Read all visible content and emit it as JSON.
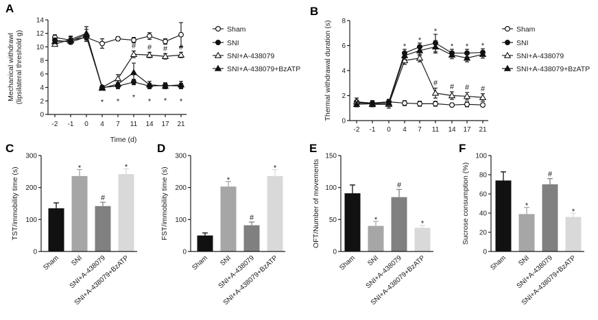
{
  "chart_data": [
    {
      "panel": "A",
      "type": "line",
      "xlabel": "Time (d)",
      "ylabel": "Mechanical withdrawl",
      "ylabel_sub": "(lipsilateral threshold g)",
      "x": [
        -2,
        -1,
        0,
        4,
        7,
        11,
        14,
        17,
        21
      ],
      "ylim": [
        0,
        14
      ],
      "yticks": [
        0,
        2,
        4,
        6,
        8,
        10,
        12,
        14
      ],
      "legend": "right",
      "series": [
        {
          "name": "Sham",
          "marker": "open-circle",
          "values": [
            11.4,
            11.0,
            11.4,
            10.5,
            11.2,
            11.0,
            11.6,
            10.8,
            11.8
          ],
          "errors": [
            0.4,
            0.5,
            0.6,
            0.7,
            0.3,
            0.4,
            0.5,
            0.4,
            1.8
          ]
        },
        {
          "name": "SNI",
          "marker": "filled-circle",
          "values": [
            11.0,
            10.7,
            11.5,
            4.0,
            4.2,
            4.8,
            4.2,
            4.3,
            4.2
          ],
          "errors": [
            0.3,
            0.3,
            0.5,
            0.3,
            0.4,
            0.4,
            0.4,
            0.4,
            0.4
          ]
        },
        {
          "name": "SNI+A-438079",
          "marker": "open-triangle",
          "values": [
            10.4,
            11.1,
            12.0,
            4.0,
            5.3,
            8.9,
            8.8,
            8.6,
            8.8
          ],
          "errors": [
            0.3,
            0.5,
            1.0,
            0.3,
            0.6,
            0.5,
            0.4,
            0.4,
            0.4
          ]
        },
        {
          "name": "SNI+A-438079+BzATP",
          "marker": "filled-triangle",
          "values": [
            10.8,
            10.9,
            11.8,
            3.9,
            4.5,
            6.2,
            4.4,
            4.2,
            4.4
          ],
          "errors": [
            0.3,
            0.4,
            0.8,
            0.3,
            0.5,
            1.4,
            0.5,
            0.4,
            0.5
          ]
        }
      ],
      "significance": [
        {
          "symbol": "*",
          "x": [
            4,
            7,
            11,
            14,
            17,
            21
          ],
          "ref_series": "SNI",
          "position": "below"
        },
        {
          "symbol": "#",
          "x": [
            11,
            14,
            17,
            21
          ],
          "ref_series": "SNI+A-438079",
          "position": "above"
        }
      ]
    },
    {
      "panel": "B",
      "type": "line",
      "ylabel": "Thermal withdrawal duration (s)",
      "x": [
        -2,
        -1,
        0,
        4,
        7,
        11,
        14,
        17,
        21
      ],
      "ylim": [
        0,
        8
      ],
      "yticks": [
        0,
        2,
        4,
        6,
        8
      ],
      "legend": "right",
      "series": [
        {
          "name": "Sham",
          "marker": "open-circle",
          "values": [
            1.5,
            1.4,
            1.5,
            1.4,
            1.35,
            1.35,
            1.25,
            1.3,
            1.25
          ],
          "errors": [
            0.3,
            0.2,
            0.2,
            0.2,
            0.2,
            0.2,
            0.15,
            0.2,
            0.15
          ]
        },
        {
          "name": "SNI",
          "marker": "filled-circle",
          "values": [
            1.4,
            1.4,
            1.5,
            5.4,
            5.9,
            6.2,
            5.4,
            5.4,
            5.45
          ],
          "errors": [
            0.2,
            0.2,
            0.2,
            0.3,
            0.3,
            0.7,
            0.3,
            0.3,
            0.3
          ]
        },
        {
          "name": "SNI+A-438079",
          "marker": "open-triangle",
          "values": [
            1.5,
            1.3,
            1.3,
            4.8,
            5.0,
            2.2,
            2.0,
            1.95,
            1.85
          ],
          "errors": [
            0.3,
            0.2,
            0.3,
            0.3,
            0.3,
            0.4,
            0.3,
            0.3,
            0.3
          ]
        },
        {
          "name": "SNI+A-438079+BzATP",
          "marker": "filled-triangle",
          "values": [
            1.3,
            1.35,
            1.4,
            5.2,
            5.6,
            5.9,
            5.25,
            5.0,
            5.3
          ],
          "errors": [
            0.2,
            0.2,
            0.2,
            0.3,
            0.4,
            0.5,
            0.3,
            0.3,
            0.3
          ]
        }
      ],
      "significance": [
        {
          "symbol": "*",
          "x": [
            4,
            7,
            11,
            14,
            17,
            21
          ],
          "ref_series": "SNI",
          "position": "above"
        },
        {
          "symbol": "#",
          "x": [
            11,
            14,
            17,
            21
          ],
          "ref_series": "SNI+A-438079",
          "position": "above"
        }
      ]
    },
    {
      "panel": "C",
      "type": "bar",
      "ylabel": "TST/immobility time (s)",
      "categories": [
        "Sham",
        "SNI",
        "SNI+A-438079",
        "SNI+A-438079+BzATP"
      ],
      "values": [
        135,
        236,
        142,
        242
      ],
      "errors": [
        17,
        20,
        12,
        17
      ],
      "significance": [
        null,
        "*",
        "#",
        "*"
      ],
      "colors": [
        "#111111",
        "#a6a6a6",
        "#808080",
        "#d9d9d9"
      ],
      "ylim": [
        0,
        300
      ],
      "yticks": [
        0,
        100,
        200,
        300
      ]
    },
    {
      "panel": "D",
      "type": "bar",
      "ylabel": "FST/immobility time (s)",
      "categories": [
        "Sham",
        "SNI",
        "SNI+A-438079",
        "SNI+A-438079+BzATP"
      ],
      "values": [
        50,
        203,
        82,
        236
      ],
      "errors": [
        8,
        16,
        10,
        20
      ],
      "significance": [
        null,
        "*",
        "#",
        "*"
      ],
      "colors": [
        "#111111",
        "#a6a6a6",
        "#808080",
        "#d9d9d9"
      ],
      "ylim": [
        0,
        300
      ],
      "yticks": [
        0,
        100,
        200,
        300
      ]
    },
    {
      "panel": "E",
      "type": "bar",
      "ylabel": "OFT/Number of movements",
      "categories": [
        "Sham",
        "SNI",
        "SNI+A-438079",
        "SNI+A-438079+BzATP"
      ],
      "values": [
        91,
        40,
        85,
        37
      ],
      "errors": [
        13,
        7,
        12,
        4
      ],
      "significance": [
        null,
        "*",
        "#",
        "*"
      ],
      "colors": [
        "#111111",
        "#a6a6a6",
        "#808080",
        "#d9d9d9"
      ],
      "ylim": [
        0,
        150
      ],
      "yticks": [
        0,
        50,
        100,
        150
      ]
    },
    {
      "panel": "F",
      "type": "bar",
      "ylabel": "Sucrose consumption (%)",
      "categories": [
        "Sham",
        "SNI",
        "SNI+A-438079",
        "SNI+A-438079+BzATP"
      ],
      "values": [
        74,
        39,
        70,
        36
      ],
      "errors": [
        9,
        7,
        6,
        4
      ],
      "significance": [
        null,
        "*",
        "#",
        "*"
      ],
      "colors": [
        "#111111",
        "#a6a6a6",
        "#808080",
        "#d9d9d9"
      ],
      "ylim": [
        0,
        100
      ],
      "yticks": [
        0,
        20,
        40,
        60,
        80,
        100
      ]
    }
  ]
}
